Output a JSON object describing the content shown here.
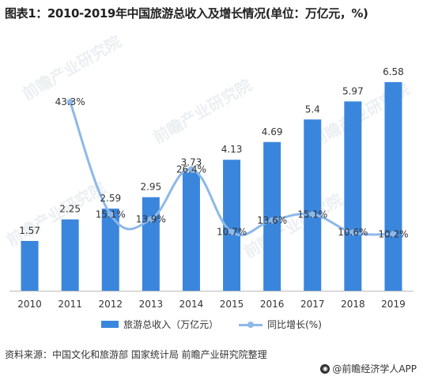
{
  "header": {
    "title": "图表1：2010-2019年中国旅游总收入及增长情况(单位：万亿元，%)"
  },
  "chart_data": {
    "type": "bar",
    "title": "图表1：2010-2019年中国旅游总收入及增长情况(单位：万亿元，%)",
    "categories": [
      "2010",
      "2011",
      "2012",
      "2013",
      "2014",
      "2015",
      "2016",
      "2017",
      "2018",
      "2019"
    ],
    "series": [
      {
        "name": "旅游总收入（万亿元）",
        "type": "bar",
        "values": [
          1.57,
          2.25,
          2.59,
          2.95,
          3.73,
          4.13,
          4.69,
          5.4,
          5.97,
          6.58
        ],
        "labels": [
          "1.57",
          "2.25",
          "2.59",
          "2.95",
          "3.73",
          "4.13",
          "4.69",
          "5.4",
          "5.97",
          "6.58"
        ],
        "color": "#3a86dc"
      },
      {
        "name": "同比增长(%)",
        "type": "line",
        "smooth": true,
        "values": [
          null,
          43.3,
          15.1,
          13.9,
          26.4,
          10.7,
          13.6,
          15.1,
          10.6,
          10.2
        ],
        "labels": [
          null,
          "43.3%",
          "15.1%",
          "13.9%",
          "26.4%",
          "10.7%",
          "13.6%",
          "15.1%",
          "10.6%",
          "10.2%"
        ],
        "color": "#8db8ea"
      }
    ],
    "xlabel": "",
    "ylabel": "",
    "bar_ylim": [
      0,
      7.3
    ],
    "line_ylim": [
      -4,
      54
    ],
    "grid": false,
    "legend": "bottom"
  },
  "legend": {
    "bar_label": "旅游总收入（万亿元）",
    "line_label": "同比增长(%)"
  },
  "footer": {
    "source": "资料来源：中国文化和旅游部 国家统计局 前瞻产业研究院整理",
    "brand": "@前瞻经济学人APP"
  },
  "watermarks": [
    "前瞻产业研究院",
    "前瞻产业研究院",
    "前瞻产业研究院",
    "前瞻产业研究院",
    "前瞻产业研究院"
  ]
}
